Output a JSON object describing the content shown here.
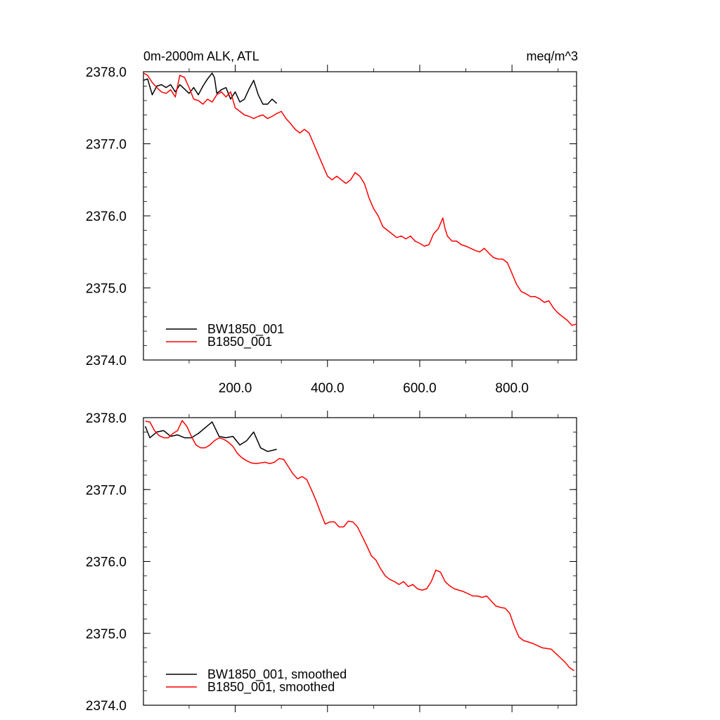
{
  "page": {
    "title_left": "0m-2000m ALK, ATL",
    "title_right": "meq/m^3"
  },
  "chart_data": [
    {
      "type": "line",
      "title": "0m-2000m ALK, ATL",
      "units": "meq/m^3",
      "xlim": [
        1,
        940
      ],
      "ylim": [
        2374.0,
        2378.0
      ],
      "xticks": [
        200,
        400,
        600,
        800
      ],
      "xtick_labels": [
        "200.0",
        "400.0",
        "600.0",
        "800.0"
      ],
      "yticks": [
        2374,
        2375,
        2376,
        2377,
        2378
      ],
      "ytick_labels": [
        "2374.0",
        "2375.0",
        "2376.0",
        "2377.0",
        "2378.0"
      ],
      "legend_position": "bottom-left",
      "series": [
        {
          "name": "BW1850_001",
          "color": "#000000",
          "x": [
            1,
            10,
            20,
            30,
            40,
            50,
            60,
            70,
            80,
            90,
            100,
            110,
            120,
            130,
            140,
            150,
            155,
            160,
            170,
            180,
            190,
            200,
            210,
            220,
            230,
            240,
            250,
            260,
            270,
            280,
            290
          ],
          "y": [
            2377.88,
            2377.9,
            2377.68,
            2377.8,
            2377.82,
            2377.78,
            2377.82,
            2377.72,
            2377.82,
            2377.76,
            2377.7,
            2377.78,
            2377.68,
            2377.8,
            2377.9,
            2377.98,
            2377.92,
            2377.7,
            2377.75,
            2377.78,
            2377.62,
            2377.72,
            2377.58,
            2377.62,
            2377.76,
            2377.88,
            2377.68,
            2377.55,
            2377.55,
            2377.62,
            2377.56
          ]
        },
        {
          "name": "B1850_001",
          "color": "#ff0000",
          "x": [
            1,
            10,
            20,
            30,
            40,
            50,
            60,
            70,
            80,
            90,
            100,
            110,
            120,
            130,
            140,
            150,
            160,
            170,
            180,
            190,
            200,
            210,
            220,
            230,
            240,
            250,
            260,
            270,
            280,
            290,
            300,
            310,
            320,
            330,
            340,
            350,
            360,
            370,
            380,
            390,
            400,
            410,
            420,
            430,
            440,
            450,
            460,
            470,
            480,
            490,
            500,
            510,
            520,
            530,
            540,
            550,
            560,
            570,
            580,
            590,
            600,
            610,
            620,
            630,
            640,
            650,
            655,
            660,
            670,
            680,
            690,
            700,
            710,
            720,
            730,
            740,
            750,
            760,
            770,
            780,
            790,
            800,
            810,
            820,
            830,
            840,
            850,
            860,
            870,
            880,
            890,
            900,
            910,
            920,
            930,
            940
          ],
          "y": [
            2377.98,
            2377.95,
            2377.85,
            2377.78,
            2377.72,
            2377.7,
            2377.75,
            2377.65,
            2377.95,
            2377.92,
            2377.78,
            2377.62,
            2377.6,
            2377.55,
            2377.62,
            2377.58,
            2377.68,
            2377.72,
            2377.65,
            2377.72,
            2377.5,
            2377.45,
            2377.4,
            2377.38,
            2377.35,
            2377.38,
            2377.4,
            2377.35,
            2377.38,
            2377.42,
            2377.45,
            2377.35,
            2377.28,
            2377.2,
            2377.15,
            2377.2,
            2377.15,
            2377.0,
            2376.85,
            2376.7,
            2376.55,
            2376.5,
            2376.55,
            2376.5,
            2376.45,
            2376.5,
            2376.6,
            2376.55,
            2376.45,
            2376.25,
            2376.1,
            2376.0,
            2375.85,
            2375.8,
            2375.75,
            2375.7,
            2375.72,
            2375.68,
            2375.72,
            2375.65,
            2375.62,
            2375.58,
            2375.6,
            2375.75,
            2375.82,
            2375.97,
            2375.82,
            2375.72,
            2375.65,
            2375.65,
            2375.6,
            2375.58,
            2375.55,
            2375.52,
            2375.5,
            2375.55,
            2375.48,
            2375.42,
            2375.4,
            2375.4,
            2375.35,
            2375.2,
            2375.05,
            2374.95,
            2374.92,
            2374.88,
            2374.88,
            2374.85,
            2374.8,
            2374.82,
            2374.72,
            2374.65,
            2374.6,
            2374.55,
            2374.48,
            2374.5
          ]
        }
      ]
    },
    {
      "type": "line",
      "xlim": [
        1,
        940
      ],
      "ylim": [
        2374.0,
        2378.0
      ],
      "yticks": [
        2374,
        2375,
        2376,
        2377,
        2378
      ],
      "ytick_labels": [
        "2374.0",
        "2375.0",
        "2376.0",
        "2377.0",
        "2378.0"
      ],
      "legend_position": "bottom-left",
      "series": [
        {
          "name": "BW1850_001, smoothed",
          "color": "#000000",
          "x": [
            5,
            15,
            30,
            45,
            60,
            75,
            90,
            105,
            120,
            135,
            150,
            165,
            180,
            195,
            210,
            225,
            240,
            255,
            270,
            290
          ],
          "y": [
            2377.88,
            2377.72,
            2377.8,
            2377.82,
            2377.74,
            2377.76,
            2377.72,
            2377.72,
            2377.78,
            2377.86,
            2377.94,
            2377.74,
            2377.72,
            2377.74,
            2377.62,
            2377.68,
            2377.8,
            2377.58,
            2377.53,
            2377.56
          ]
        },
        {
          "name": "B1850_001, smoothed",
          "color": "#ff0000",
          "x": [
            5,
            15,
            25,
            35,
            45,
            55,
            65,
            75,
            85,
            95,
            105,
            115,
            125,
            135,
            145,
            155,
            165,
            175,
            185,
            195,
            205,
            215,
            225,
            235,
            245,
            255,
            265,
            275,
            285,
            295,
            305,
            315,
            325,
            335,
            345,
            355,
            365,
            375,
            385,
            395,
            405,
            415,
            425,
            435,
            445,
            455,
            465,
            475,
            485,
            495,
            505,
            515,
            525,
            535,
            545,
            555,
            565,
            575,
            585,
            595,
            605,
            615,
            625,
            635,
            645,
            655,
            665,
            675,
            685,
            695,
            705,
            715,
            725,
            735,
            745,
            755,
            765,
            775,
            785,
            795,
            805,
            815,
            825,
            835,
            845,
            855,
            865,
            875,
            885,
            895,
            905,
            915,
            925,
            935
          ],
          "y": [
            2377.95,
            2377.94,
            2377.82,
            2377.75,
            2377.72,
            2377.72,
            2377.78,
            2377.82,
            2377.96,
            2377.88,
            2377.74,
            2377.62,
            2377.58,
            2377.58,
            2377.62,
            2377.68,
            2377.72,
            2377.7,
            2377.66,
            2377.6,
            2377.5,
            2377.44,
            2377.4,
            2377.37,
            2377.36,
            2377.37,
            2377.38,
            2377.36,
            2377.38,
            2377.43,
            2377.42,
            2377.32,
            2377.22,
            2377.15,
            2377.18,
            2377.14,
            2377.0,
            2376.85,
            2376.68,
            2376.52,
            2376.55,
            2376.55,
            2376.48,
            2376.48,
            2376.56,
            2376.55,
            2376.48,
            2376.35,
            2376.22,
            2376.08,
            2376.02,
            2375.9,
            2375.8,
            2375.75,
            2375.72,
            2375.68,
            2375.72,
            2375.65,
            2375.68,
            2375.62,
            2375.6,
            2375.62,
            2375.72,
            2375.88,
            2375.85,
            2375.72,
            2375.66,
            2375.62,
            2375.6,
            2375.58,
            2375.55,
            2375.52,
            2375.52,
            2375.5,
            2375.52,
            2375.45,
            2375.38,
            2375.36,
            2375.35,
            2375.28,
            2375.1,
            2374.95,
            2374.9,
            2374.88,
            2374.86,
            2374.83,
            2374.8,
            2374.79,
            2374.78,
            2374.72,
            2374.66,
            2374.6,
            2374.52,
            2374.48
          ]
        }
      ]
    }
  ]
}
